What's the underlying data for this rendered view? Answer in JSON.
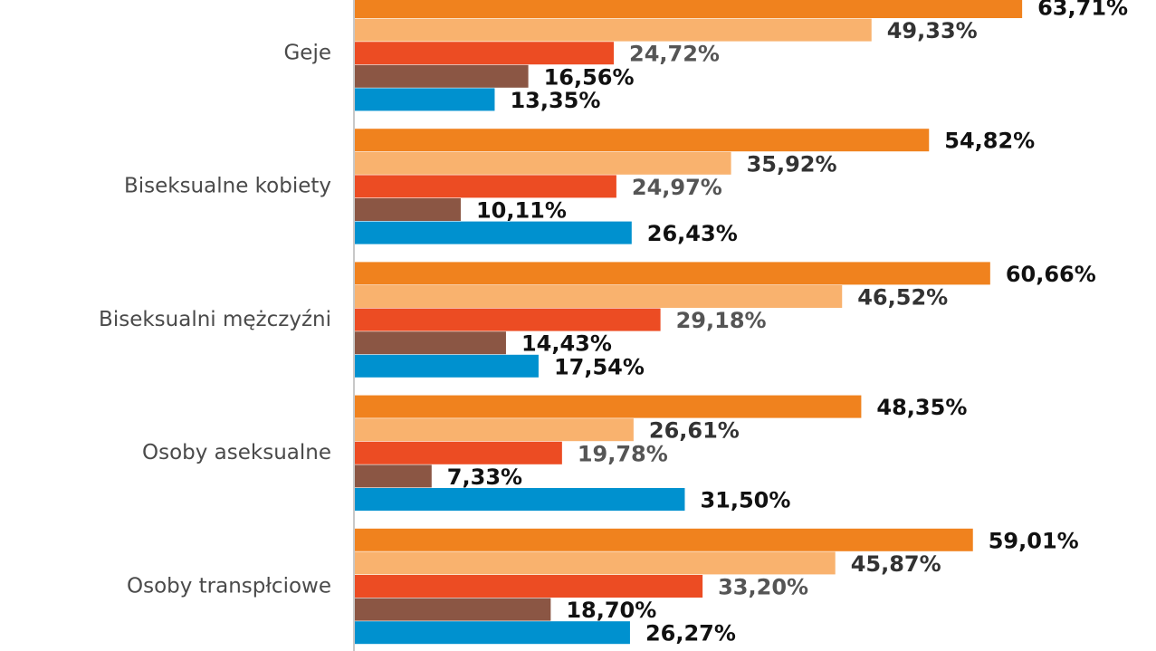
{
  "chart_data": {
    "type": "bar",
    "orientation": "horizontal",
    "categories": [
      "Geje",
      "Biseksualne kobiety",
      "Biseksualni mężczyźni",
      "Osoby aseksualne",
      "Osoby transpłciowe"
    ],
    "value_labels": [
      [
        "63,71%",
        "49,33%",
        "24,72%",
        "16,56%",
        "13,35%"
      ],
      [
        "54,82%",
        "35,92%",
        "24,97%",
        "10,11%",
        "26,43%"
      ],
      [
        "60,66%",
        "46,52%",
        "29,18%",
        "14,43%",
        "17,54%"
      ],
      [
        "48,35%",
        "26,61%",
        "19,78%",
        "7,33%",
        "31,50%"
      ],
      [
        "59,01%",
        "45,87%",
        "33,20%",
        "18,70%",
        "26,27%"
      ]
    ],
    "series": [
      {
        "color": "#f0821e",
        "values": [
          63.71,
          54.82,
          60.66,
          48.35,
          59.01
        ],
        "label_color": "#111111"
      },
      {
        "color": "#f9b26e",
        "values": [
          49.33,
          35.92,
          46.52,
          26.61,
          45.87
        ],
        "label_color": "#333333"
      },
      {
        "color": "#ec4c23",
        "values": [
          24.72,
          24.97,
          29.18,
          19.78,
          33.2
        ],
        "label_color": "#555555"
      },
      {
        "color": "#8b5644",
        "values": [
          16.56,
          10.11,
          14.43,
          7.33,
          18.7
        ],
        "label_color": "#111111"
      },
      {
        "color": "#0091cf",
        "values": [
          13.35,
          26.43,
          17.54,
          31.5,
          26.27
        ],
        "label_color": "#111111"
      }
    ],
    "xlim": [
      0,
      100
    ],
    "grid": false,
    "legend": "none"
  }
}
